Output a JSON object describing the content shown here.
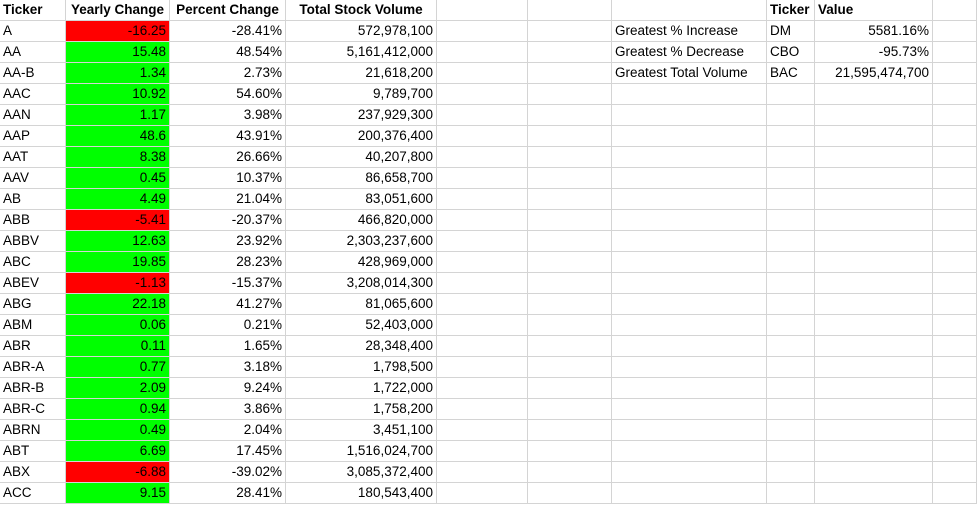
{
  "colors": {
    "positive_fill": "#00ff00",
    "negative_fill": "#ff0000",
    "gridline": "#d4d4d4"
  },
  "headers": [
    "Ticker",
    "Yearly Change",
    "Percent Change",
    "Total Stock Volume"
  ],
  "rows": [
    {
      "ticker": "A",
      "change": "-16.25",
      "percent": "-28.41%",
      "volume": "572,978,100",
      "sign": "neg"
    },
    {
      "ticker": "AA",
      "change": "15.48",
      "percent": "48.54%",
      "volume": "5,161,412,000",
      "sign": "pos"
    },
    {
      "ticker": "AA-B",
      "change": "1.34",
      "percent": "2.73%",
      "volume": "21,618,200",
      "sign": "pos"
    },
    {
      "ticker": "AAC",
      "change": "10.92",
      "percent": "54.60%",
      "volume": "9,789,700",
      "sign": "pos"
    },
    {
      "ticker": "AAN",
      "change": "1.17",
      "percent": "3.98%",
      "volume": "237,929,300",
      "sign": "pos"
    },
    {
      "ticker": "AAP",
      "change": "48.6",
      "percent": "43.91%",
      "volume": "200,376,400",
      "sign": "pos"
    },
    {
      "ticker": "AAT",
      "change": "8.38",
      "percent": "26.66%",
      "volume": "40,207,800",
      "sign": "pos"
    },
    {
      "ticker": "AAV",
      "change": "0.45",
      "percent": "10.37%",
      "volume": "86,658,700",
      "sign": "pos"
    },
    {
      "ticker": "AB",
      "change": "4.49",
      "percent": "21.04%",
      "volume": "83,051,600",
      "sign": "pos"
    },
    {
      "ticker": "ABB",
      "change": "-5.41",
      "percent": "-20.37%",
      "volume": "466,820,000",
      "sign": "neg"
    },
    {
      "ticker": "ABBV",
      "change": "12.63",
      "percent": "23.92%",
      "volume": "2,303,237,600",
      "sign": "pos"
    },
    {
      "ticker": "ABC",
      "change": "19.85",
      "percent": "28.23%",
      "volume": "428,969,000",
      "sign": "pos"
    },
    {
      "ticker": "ABEV",
      "change": "-1.13",
      "percent": "-15.37%",
      "volume": "3,208,014,300",
      "sign": "neg"
    },
    {
      "ticker": "ABG",
      "change": "22.18",
      "percent": "41.27%",
      "volume": "81,065,600",
      "sign": "pos"
    },
    {
      "ticker": "ABM",
      "change": "0.06",
      "percent": "0.21%",
      "volume": "52,403,000",
      "sign": "pos"
    },
    {
      "ticker": "ABR",
      "change": "0.11",
      "percent": "1.65%",
      "volume": "28,348,400",
      "sign": "pos"
    },
    {
      "ticker": "ABR-A",
      "change": "0.77",
      "percent": "3.18%",
      "volume": "1,798,500",
      "sign": "pos"
    },
    {
      "ticker": "ABR-B",
      "change": "2.09",
      "percent": "9.24%",
      "volume": "1,722,000",
      "sign": "pos"
    },
    {
      "ticker": "ABR-C",
      "change": "0.94",
      "percent": "3.86%",
      "volume": "1,758,200",
      "sign": "pos"
    },
    {
      "ticker": "ABRN",
      "change": "0.49",
      "percent": "2.04%",
      "volume": "3,451,100",
      "sign": "pos"
    },
    {
      "ticker": "ABT",
      "change": "6.69",
      "percent": "17.45%",
      "volume": "1,516,024,700",
      "sign": "pos"
    },
    {
      "ticker": "ABX",
      "change": "-6.88",
      "percent": "-39.02%",
      "volume": "3,085,372,400",
      "sign": "neg"
    },
    {
      "ticker": "ACC",
      "change": "9.15",
      "percent": "28.41%",
      "volume": "180,543,400",
      "sign": "pos"
    }
  ],
  "summary": {
    "headers": {
      "ticker": "Ticker",
      "value": "Value"
    },
    "rows": [
      {
        "label": "Greatest % Increase",
        "ticker": "DM",
        "value": "5581.16%"
      },
      {
        "label": "Greatest % Decrease",
        "ticker": "CBO",
        "value": "-95.73%"
      },
      {
        "label": "Greatest Total Volume",
        "ticker": "BAC",
        "value": "21,595,474,700"
      }
    ]
  }
}
